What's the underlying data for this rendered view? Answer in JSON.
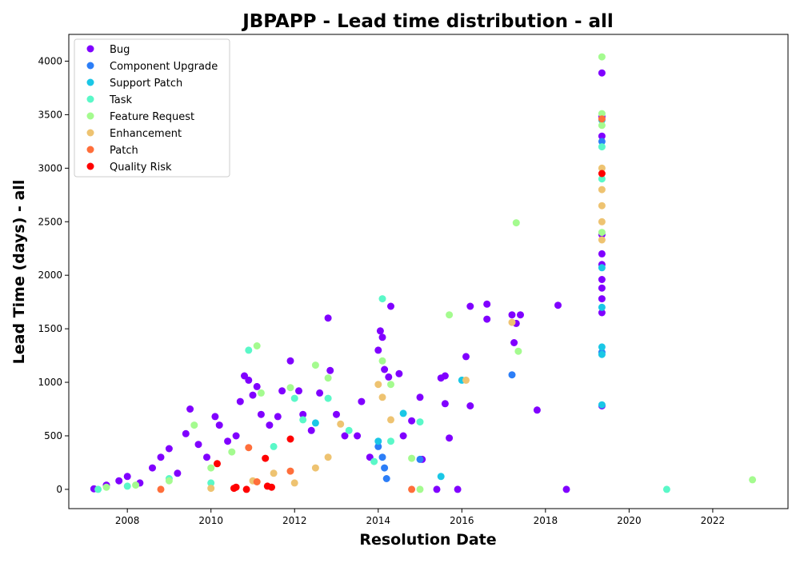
{
  "chart_data": {
    "type": "scatter",
    "title": "JBPAPP - Lead time distribution - all",
    "xlabel": "Resolution Date",
    "ylabel": "Lead Time (days) - all",
    "xlim": [
      2006.6,
      2023.8
    ],
    "ylim": [
      -180,
      4250
    ],
    "x_ticks": [
      "2008",
      "2010",
      "2012",
      "2014",
      "2016",
      "2018",
      "2020",
      "2022"
    ],
    "y_ticks": [
      "0",
      "500",
      "1000",
      "1500",
      "2000",
      "2500",
      "3000",
      "3500",
      "4000"
    ],
    "grid": false,
    "legend_position": "top-left",
    "series": [
      {
        "name": "Bug",
        "color": "#8000ff",
        "points": [
          [
            2007.2,
            5
          ],
          [
            2007.5,
            40
          ],
          [
            2007.8,
            80
          ],
          [
            2008.0,
            120
          ],
          [
            2008.3,
            60
          ],
          [
            2008.6,
            200
          ],
          [
            2008.8,
            300
          ],
          [
            2009.0,
            380
          ],
          [
            2009.2,
            150
          ],
          [
            2009.4,
            520
          ],
          [
            2009.5,
            750
          ],
          [
            2009.7,
            420
          ],
          [
            2009.9,
            300
          ],
          [
            2010.1,
            680
          ],
          [
            2010.2,
            600
          ],
          [
            2010.4,
            450
          ],
          [
            2010.6,
            500
          ],
          [
            2010.7,
            820
          ],
          [
            2010.8,
            1060
          ],
          [
            2010.9,
            1020
          ],
          [
            2011.0,
            880
          ],
          [
            2011.1,
            960
          ],
          [
            2011.2,
            700
          ],
          [
            2011.4,
            600
          ],
          [
            2011.6,
            680
          ],
          [
            2011.7,
            920
          ],
          [
            2011.9,
            1200
          ],
          [
            2012.1,
            920
          ],
          [
            2012.2,
            700
          ],
          [
            2012.4,
            550
          ],
          [
            2012.6,
            900
          ],
          [
            2012.8,
            1600
          ],
          [
            2012.85,
            1110
          ],
          [
            2013.0,
            700
          ],
          [
            2013.2,
            500
          ],
          [
            2013.5,
            500
          ],
          [
            2013.6,
            820
          ],
          [
            2013.8,
            300
          ],
          [
            2014.0,
            1300
          ],
          [
            2014.05,
            1480
          ],
          [
            2014.1,
            1420
          ],
          [
            2014.15,
            1120
          ],
          [
            2014.25,
            1050
          ],
          [
            2014.3,
            1710
          ],
          [
            2014.5,
            1080
          ],
          [
            2014.6,
            500
          ],
          [
            2014.8,
            640
          ],
          [
            2015.0,
            860
          ],
          [
            2015.05,
            280
          ],
          [
            2015.5,
            1040
          ],
          [
            2015.6,
            1060
          ],
          [
            2015.6,
            800
          ],
          [
            2015.7,
            480
          ],
          [
            2015.9,
            0
          ],
          [
            2016.1,
            1240
          ],
          [
            2016.2,
            1710
          ],
          [
            2016.2,
            780
          ],
          [
            2016.6,
            1590
          ],
          [
            2016.6,
            1730
          ],
          [
            2017.2,
            1630
          ],
          [
            2017.25,
            1370
          ],
          [
            2017.3,
            1550
          ],
          [
            2017.4,
            1630
          ],
          [
            2017.8,
            740
          ],
          [
            2018.3,
            1720
          ],
          [
            2018.5,
            0
          ],
          [
            2015.4,
            0
          ],
          [
            2019.35,
            3890
          ],
          [
            2019.35,
            3480
          ],
          [
            2019.35,
            3300
          ],
          [
            2019.35,
            2200
          ],
          [
            2019.35,
            2100
          ],
          [
            2019.35,
            1960
          ],
          [
            2019.35,
            1880
          ],
          [
            2019.35,
            1780
          ],
          [
            2019.35,
            1650
          ],
          [
            2019.35,
            780
          ],
          [
            2019.35,
            2380
          ]
        ]
      },
      {
        "name": "Component Upgrade",
        "color": "#2c7ef7",
        "points": [
          [
            2014.0,
            400
          ],
          [
            2014.1,
            300
          ],
          [
            2014.15,
            200
          ],
          [
            2014.2,
            100
          ],
          [
            2015.0,
            280
          ],
          [
            2017.2,
            1070
          ],
          [
            2019.35,
            1280
          ],
          [
            2019.35,
            3250
          ]
        ]
      },
      {
        "name": "Support Patch",
        "color": "#1ac7e6",
        "points": [
          [
            2012.5,
            620
          ],
          [
            2014.0,
            450
          ],
          [
            2014.6,
            710
          ],
          [
            2015.5,
            120
          ],
          [
            2016.0,
            1020
          ],
          [
            2019.35,
            1700
          ],
          [
            2019.35,
            1330
          ],
          [
            2019.35,
            1260
          ],
          [
            2019.35,
            2070
          ],
          [
            2019.35,
            790
          ],
          [
            2019.35,
            3450
          ]
        ]
      },
      {
        "name": "Task",
        "color": "#5af8c8",
        "points": [
          [
            2007.3,
            0
          ],
          [
            2008.0,
            30
          ],
          [
            2009.0,
            100
          ],
          [
            2010.0,
            60
          ],
          [
            2010.9,
            1300
          ],
          [
            2011.5,
            400
          ],
          [
            2012.0,
            850
          ],
          [
            2012.2,
            650
          ],
          [
            2012.8,
            850
          ],
          [
            2013.3,
            550
          ],
          [
            2013.9,
            260
          ],
          [
            2014.1,
            1780
          ],
          [
            2014.3,
            450
          ],
          [
            2015.0,
            630
          ],
          [
            2020.9,
            0
          ],
          [
            2019.35,
            3200
          ],
          [
            2019.35,
            2900
          ]
        ]
      },
      {
        "name": "Feature Request",
        "color": "#a4fb8f",
        "points": [
          [
            2007.5,
            20
          ],
          [
            2008.2,
            40
          ],
          [
            2009.0,
            80
          ],
          [
            2009.6,
            600
          ],
          [
            2010.0,
            200
          ],
          [
            2010.5,
            350
          ],
          [
            2011.1,
            1340
          ],
          [
            2011.2,
            900
          ],
          [
            2011.9,
            950
          ],
          [
            2012.5,
            1160
          ],
          [
            2012.8,
            1040
          ],
          [
            2014.1,
            1200
          ],
          [
            2014.3,
            980
          ],
          [
            2014.8,
            290
          ],
          [
            2015.0,
            0
          ],
          [
            2015.7,
            1630
          ],
          [
            2017.3,
            2490
          ],
          [
            2017.35,
            1290
          ],
          [
            2022.95,
            90
          ],
          [
            2019.35,
            4040
          ],
          [
            2019.35,
            3510
          ],
          [
            2019.35,
            3400
          ],
          [
            2019.35,
            2400
          ]
        ]
      },
      {
        "name": "Enhancement",
        "color": "#eec371",
        "points": [
          [
            2010.0,
            10
          ],
          [
            2011.0,
            80
          ],
          [
            2011.5,
            150
          ],
          [
            2012.0,
            60
          ],
          [
            2012.5,
            200
          ],
          [
            2012.8,
            300
          ],
          [
            2013.1,
            610
          ],
          [
            2014.0,
            980
          ],
          [
            2014.1,
            860
          ],
          [
            2014.3,
            650
          ],
          [
            2016.1,
            1020
          ],
          [
            2017.2,
            1560
          ],
          [
            2019.35,
            3000
          ],
          [
            2019.35,
            2800
          ],
          [
            2019.35,
            2650
          ],
          [
            2019.35,
            2500
          ],
          [
            2019.35,
            2330
          ]
        ]
      },
      {
        "name": "Patch",
        "color": "#ff6e3a",
        "points": [
          [
            2008.8,
            0
          ],
          [
            2010.9,
            390
          ],
          [
            2011.1,
            70
          ],
          [
            2011.9,
            170
          ],
          [
            2014.8,
            0
          ],
          [
            2019.35,
            3460
          ]
        ]
      },
      {
        "name": "Quality Risk",
        "color": "#ff0000",
        "points": [
          [
            2010.15,
            240
          ],
          [
            2010.55,
            10
          ],
          [
            2010.6,
            20
          ],
          [
            2010.85,
            0
          ],
          [
            2011.3,
            290
          ],
          [
            2011.35,
            30
          ],
          [
            2011.45,
            20
          ],
          [
            2011.9,
            470
          ],
          [
            2019.35,
            2950
          ]
        ]
      }
    ]
  }
}
